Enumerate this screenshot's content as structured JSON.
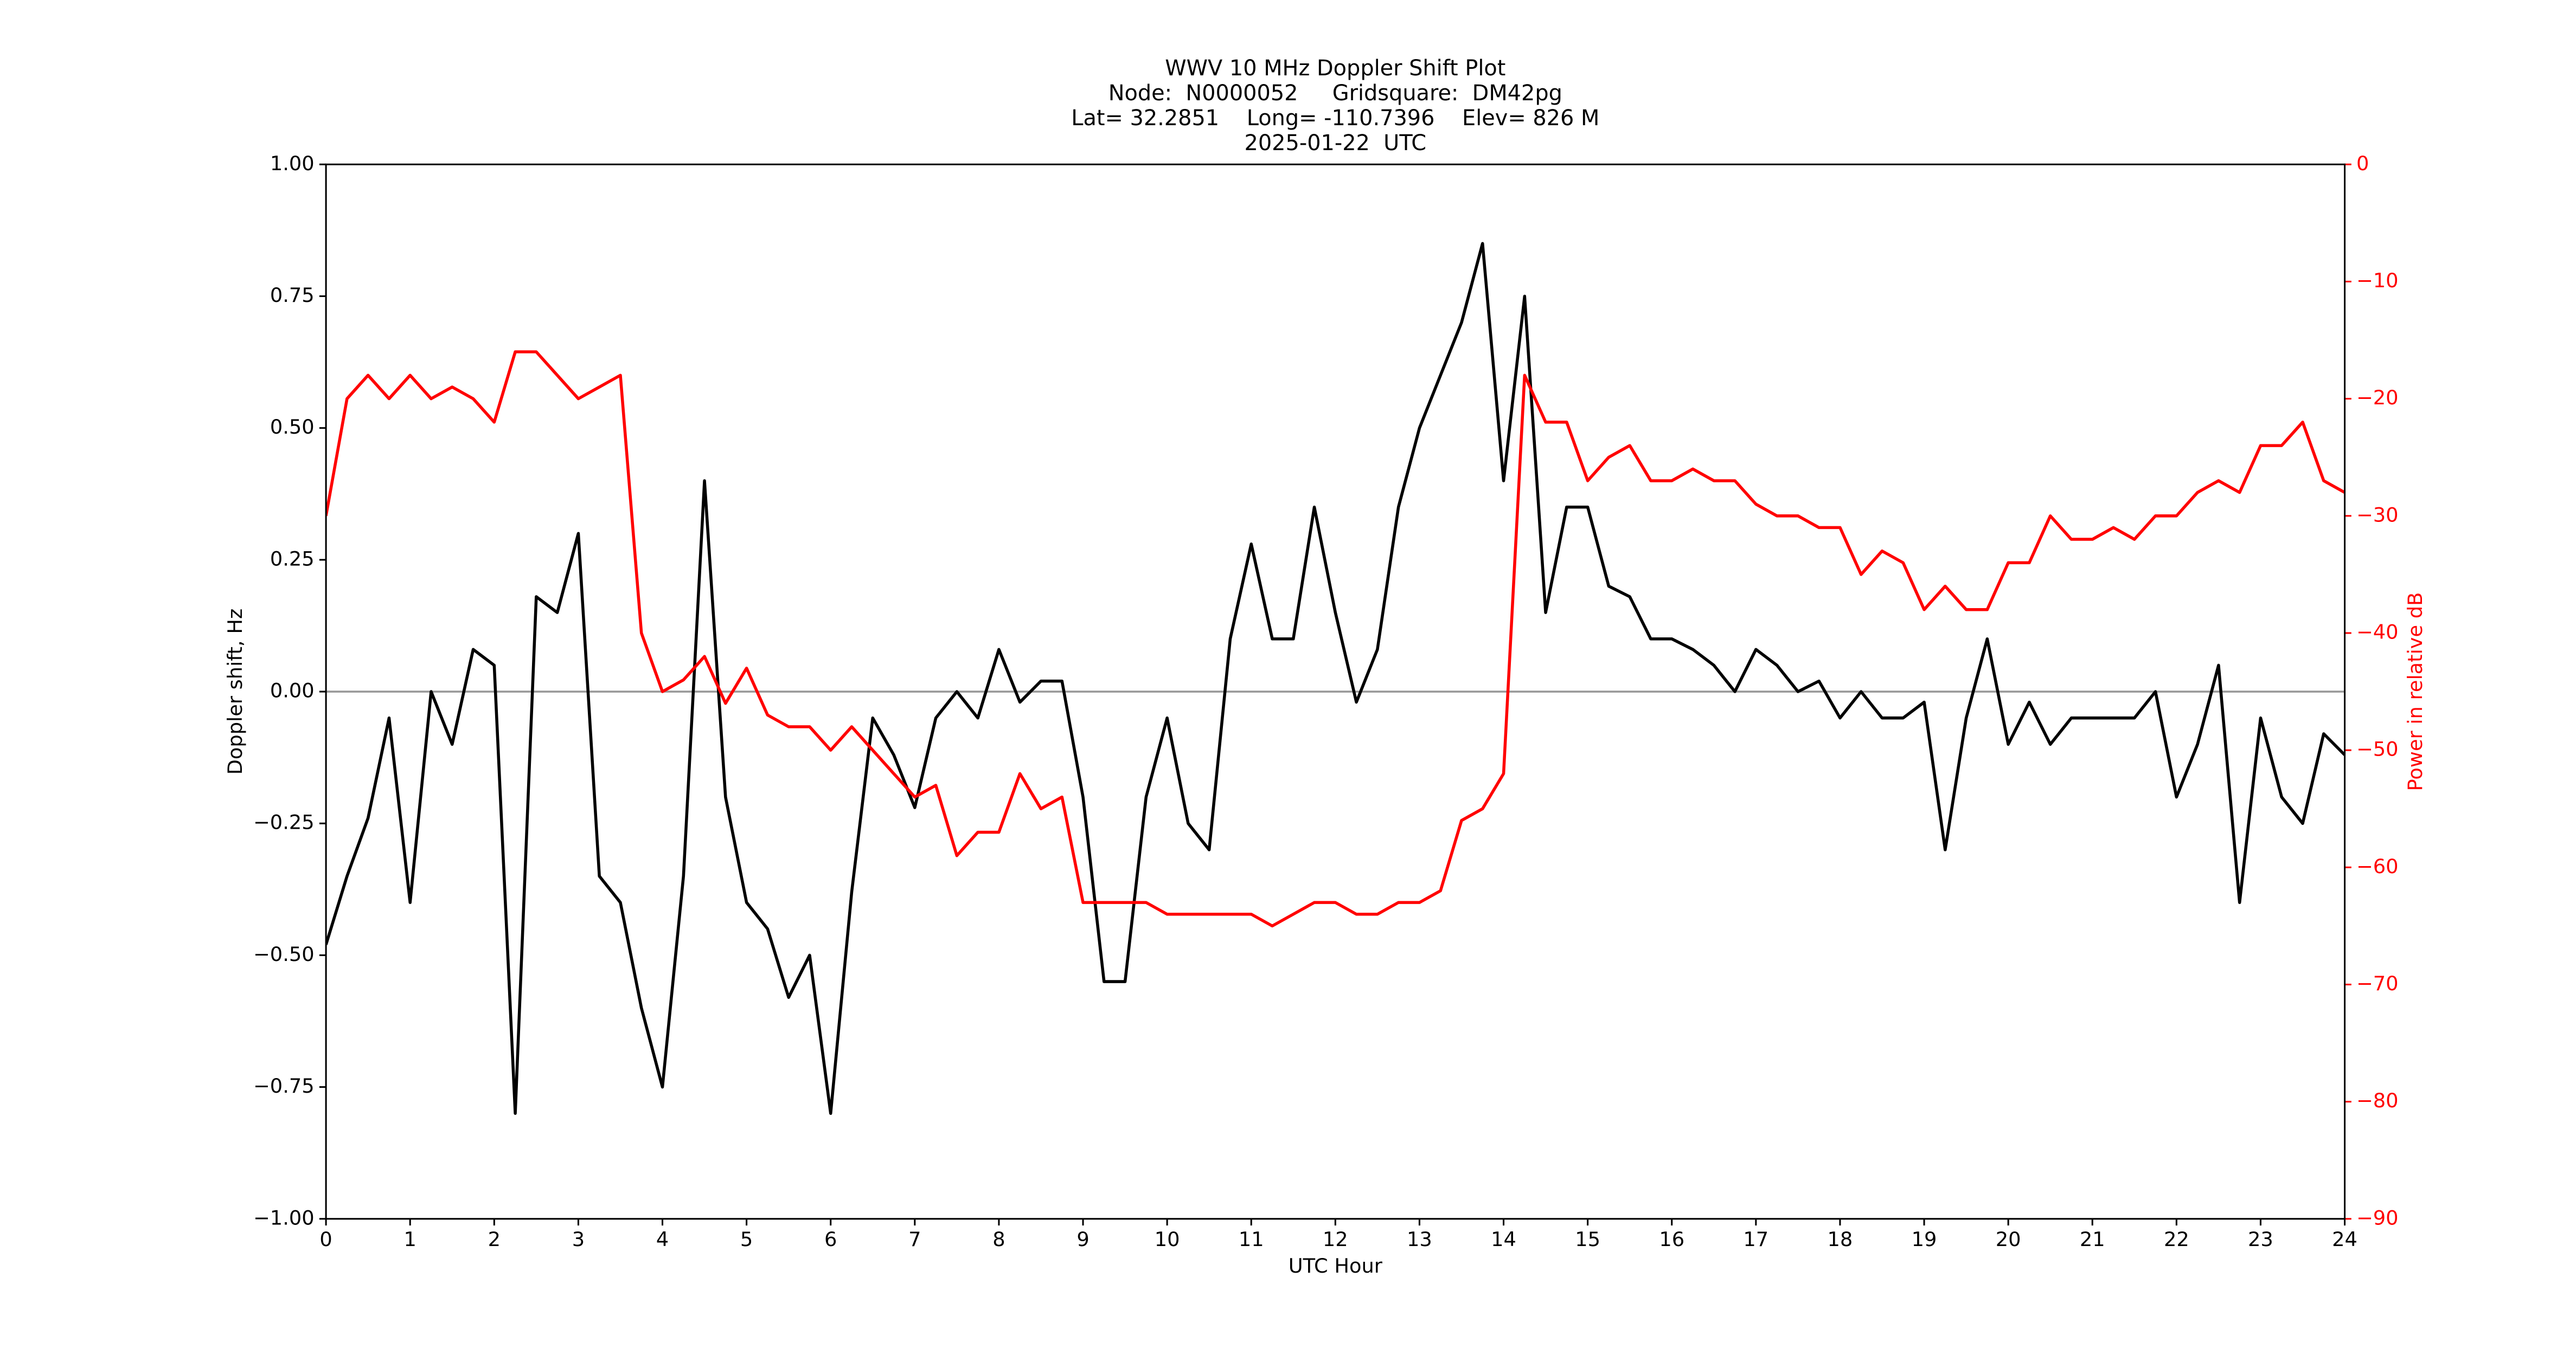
{
  "chart_data": {
    "type": "line",
    "title": [
      "WWV 10 MHz Doppler Shift Plot",
      "Node:  N0000052     Gridsquare:  DM42pg",
      "Lat= 32.2851    Long= -110.7396    Elev= 826 M",
      "2025-01-22  UTC"
    ],
    "x_label": "UTC Hour",
    "y_label": "Doppler shift, Hz",
    "y2_label": "Power in relative dB",
    "x": [
      0,
      0.25,
      0.5,
      0.75,
      1,
      1.25,
      1.5,
      1.75,
      2,
      2.25,
      2.5,
      2.75,
      3,
      3.25,
      3.5,
      3.75,
      4,
      4.25,
      4.5,
      4.75,
      5,
      5.25,
      5.5,
      5.75,
      6,
      6.25,
      6.5,
      6.75,
      7,
      7.25,
      7.5,
      7.75,
      8,
      8.25,
      8.5,
      8.75,
      9,
      9.25,
      9.5,
      9.75,
      10,
      10.25,
      10.5,
      10.75,
      11,
      11.25,
      11.5,
      11.75,
      12,
      12.25,
      12.5,
      12.75,
      13,
      13.25,
      13.5,
      13.75,
      14,
      14.25,
      14.5,
      14.75,
      15,
      15.25,
      15.5,
      15.75,
      16,
      16.25,
      16.5,
      16.75,
      17,
      17.25,
      17.5,
      17.75,
      18,
      18.25,
      18.5,
      18.75,
      19,
      19.25,
      19.5,
      19.75,
      20,
      20.25,
      20.5,
      20.75,
      21,
      21.25,
      21.5,
      21.75,
      22,
      22.25,
      22.5,
      22.75,
      23,
      23.25,
      23.5,
      23.75,
      24
    ],
    "series": [
      {
        "color": "#000000",
        "axis": "y",
        "values": [
          -0.48,
          -0.35,
          -0.24,
          -0.05,
          -0.4,
          0.0,
          -0.1,
          0.08,
          0.05,
          -0.8,
          0.18,
          0.15,
          0.3,
          -0.35,
          -0.4,
          -0.6,
          -0.75,
          -0.35,
          0.4,
          -0.2,
          -0.4,
          -0.45,
          -0.58,
          -0.5,
          -0.8,
          -0.38,
          -0.05,
          -0.12,
          -0.22,
          -0.05,
          0.0,
          -0.05,
          0.08,
          -0.02,
          0.02,
          0.02,
          -0.2,
          -0.55,
          -0.55,
          -0.2,
          -0.05,
          -0.25,
          -0.3,
          0.1,
          0.28,
          0.1,
          0.1,
          0.35,
          0.15,
          -0.02,
          0.08,
          0.35,
          0.5,
          0.6,
          0.7,
          0.85,
          0.4,
          0.75,
          0.15,
          0.35,
          0.35,
          0.2,
          0.18,
          0.1,
          0.1,
          0.08,
          0.05,
          0.0,
          0.08,
          0.05,
          0.0,
          0.02,
          -0.05,
          0.0,
          -0.05,
          -0.05,
          -0.02,
          -0.3,
          -0.05,
          0.1,
          -0.1,
          -0.02,
          -0.1,
          -0.05,
          -0.05,
          -0.05,
          -0.05,
          0.0,
          -0.2,
          -0.1,
          0.05,
          -0.4,
          -0.05,
          -0.2,
          -0.25,
          -0.08,
          -0.12
        ]
      },
      {
        "color": "#ff0000",
        "axis": "y2",
        "values": [
          -30,
          -20,
          -18,
          -20,
          -18,
          -20,
          -19,
          -20,
          -22,
          -16,
          -16,
          -18,
          -20,
          -19,
          -18,
          -40,
          -45,
          -44,
          -42,
          -46,
          -43,
          -47,
          -48,
          -48,
          -50,
          -48,
          -50,
          -52,
          -54,
          -53,
          -59,
          -57,
          -57,
          -52,
          -55,
          -54,
          -63,
          -63,
          -63,
          -63,
          -64,
          -64,
          -64,
          -64,
          -64,
          -65,
          -64,
          -63,
          -63,
          -64,
          -64,
          -63,
          -63,
          -62,
          -56,
          -55,
          -52,
          -18,
          -22,
          -22,
          -27,
          -25,
          -24,
          -27,
          -27,
          -26,
          -27,
          -27,
          -29,
          -30,
          -30,
          -31,
          -31,
          -35,
          -33,
          -34,
          -38,
          -36,
          -38,
          -38,
          -34,
          -34,
          -30,
          -32,
          -32,
          -31,
          -32,
          -30,
          -30,
          -28,
          -27,
          -28,
          -24,
          -24,
          -22,
          -27,
          -28
        ]
      }
    ],
    "xlim": [
      0,
      24
    ],
    "xticks": [
      0,
      1,
      2,
      3,
      4,
      5,
      6,
      7,
      8,
      9,
      10,
      11,
      12,
      13,
      14,
      15,
      16,
      17,
      18,
      19,
      20,
      21,
      22,
      23,
      24
    ],
    "ylim": [
      -1,
      1
    ],
    "yticks": [
      {
        "value": -1,
        "label": "−1.00"
      },
      {
        "value": -0.75,
        "label": "−0.75"
      },
      {
        "value": -0.5,
        "label": "−0.50"
      },
      {
        "value": -0.25,
        "label": "−0.25"
      },
      {
        "value": 0,
        "label": "0.00"
      },
      {
        "value": 0.25,
        "label": "0.25"
      },
      {
        "value": 0.5,
        "label": "0.50"
      },
      {
        "value": 0.75,
        "label": "0.75"
      },
      {
        "value": 1,
        "label": "1.00"
      }
    ],
    "y2lim": [
      -90,
      0
    ],
    "y2ticks": [
      {
        "value": -90,
        "label": "−90"
      },
      {
        "value": -80,
        "label": "−80"
      },
      {
        "value": -70,
        "label": "−70"
      },
      {
        "value": -60,
        "label": "−60"
      },
      {
        "value": -50,
        "label": "−50"
      },
      {
        "value": -40,
        "label": "−40"
      },
      {
        "value": -30,
        "label": "−30"
      },
      {
        "value": -20,
        "label": "−20"
      },
      {
        "value": -10,
        "label": "−10"
      },
      0
    ],
    "y2_color": "#ff0000",
    "hline": 0,
    "hline_color": "#999999"
  }
}
